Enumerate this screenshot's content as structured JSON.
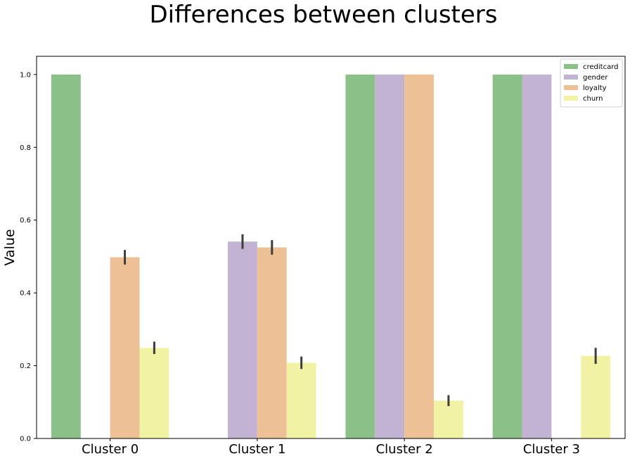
{
  "chart_data": {
    "type": "bar",
    "title": "Differences between clusters",
    "xlabel": "",
    "ylabel": "Value",
    "ylim": [
      0,
      1.05
    ],
    "yticks": [
      "0.0",
      "0.2",
      "0.4",
      "0.6",
      "0.8",
      "1.0"
    ],
    "grid": false,
    "legend_position": "top-right",
    "categories": [
      "Cluster 0",
      "Cluster 1",
      "Cluster 2",
      "Cluster 3"
    ],
    "series": [
      {
        "name": "creditcard",
        "color": "#8bc188",
        "values": [
          1.0,
          0.0,
          1.0,
          1.0
        ],
        "error": [
          0,
          0,
          0,
          0
        ]
      },
      {
        "name": "gender",
        "color": "#c1b3d1",
        "values": [
          0.0,
          0.541,
          1.0,
          1.0
        ],
        "error": [
          0,
          0.02,
          0,
          0
        ]
      },
      {
        "name": "loyalty",
        "color": "#edc095",
        "values": [
          0.498,
          0.525,
          1.0,
          0.0
        ],
        "error": [
          0.02,
          0.02,
          0,
          0
        ]
      },
      {
        "name": "churn",
        "color": "#f1f2a4",
        "values": [
          0.249,
          0.208,
          0.104,
          0.227
        ],
        "error": [
          0.017,
          0.017,
          0.015,
          0.022
        ]
      }
    ]
  }
}
